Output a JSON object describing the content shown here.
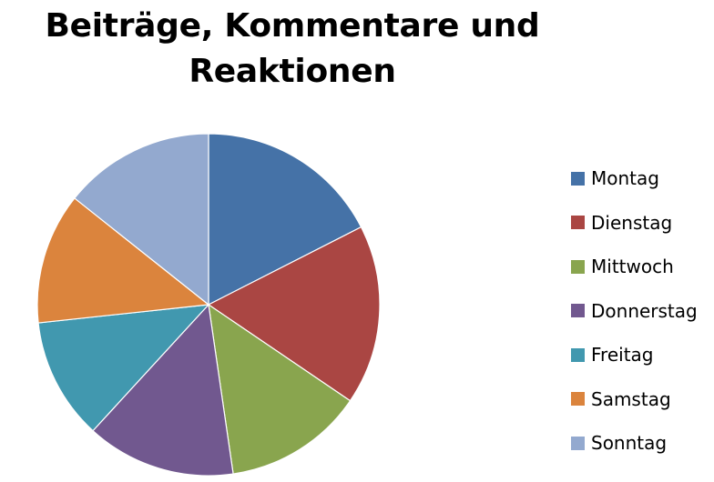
{
  "chart_data": {
    "type": "pie",
    "title": "Beiträge, Kommentare und Reaktionen",
    "title_lines": [
      "Beiträge, Kommentare und",
      "Reaktionen"
    ],
    "categories": [
      "Montag",
      "Dienstag",
      "Mittwoch",
      "Donnerstag",
      "Freitag",
      "Samstag",
      "Sonntag"
    ],
    "values": [
      17.5,
      17,
      13.2,
      14.1,
      11.5,
      12.4,
      14.3
    ],
    "colors": [
      "#4572A7",
      "#AA4643",
      "#89A54E",
      "#71588F",
      "#4198AF",
      "#DB843D",
      "#93A9CF"
    ],
    "start_angle_deg": 0,
    "direction": "clockwise",
    "legend_position": "right"
  }
}
